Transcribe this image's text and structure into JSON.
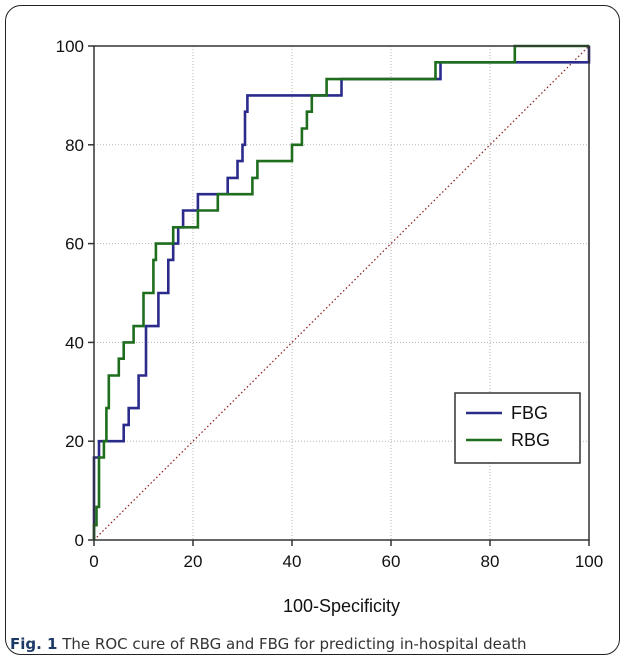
{
  "chart_data": {
    "type": "line",
    "xlabel": "100-Specificity",
    "ylabel": "",
    "xlim": [
      0,
      100
    ],
    "ylim": [
      0,
      100
    ],
    "xticks": [
      0,
      20,
      40,
      60,
      80,
      100
    ],
    "yticks": [
      0,
      20,
      40,
      60,
      80,
      100
    ],
    "grid": true,
    "legend_position": "lower-right",
    "series": [
      {
        "name": "FBG",
        "color": "#2b2b8c",
        "style": "step",
        "points": [
          [
            0,
            0
          ],
          [
            0,
            16.7
          ],
          [
            1,
            16.7
          ],
          [
            1,
            20
          ],
          [
            6,
            20
          ],
          [
            6,
            23.3
          ],
          [
            7,
            23.3
          ],
          [
            7,
            26.7
          ],
          [
            9,
            26.7
          ],
          [
            9,
            33.3
          ],
          [
            10.5,
            33.3
          ],
          [
            10.5,
            43.3
          ],
          [
            13,
            43.3
          ],
          [
            13,
            50
          ],
          [
            15,
            50
          ],
          [
            15,
            56.7
          ],
          [
            16,
            56.7
          ],
          [
            16,
            60
          ],
          [
            17,
            60
          ],
          [
            17,
            63.3
          ],
          [
            18,
            63.3
          ],
          [
            18,
            66.7
          ],
          [
            21,
            66.7
          ],
          [
            21,
            70
          ],
          [
            27,
            70
          ],
          [
            27,
            73.3
          ],
          [
            29,
            73.3
          ],
          [
            29,
            76.7
          ],
          [
            30,
            76.7
          ],
          [
            30,
            80
          ],
          [
            30.5,
            80
          ],
          [
            30.5,
            86.7
          ],
          [
            31,
            86.7
          ],
          [
            31,
            90
          ],
          [
            50,
            90
          ],
          [
            50,
            93.3
          ],
          [
            70,
            93.3
          ],
          [
            70,
            96.7
          ],
          [
            100,
            96.7
          ],
          [
            100,
            100
          ]
        ]
      },
      {
        "name": "RBG",
        "color": "#1e6e1e",
        "style": "step",
        "points": [
          [
            0,
            0
          ],
          [
            0,
            3
          ],
          [
            0.5,
            3
          ],
          [
            0.5,
            6.7
          ],
          [
            1,
            6.7
          ],
          [
            1,
            16.7
          ],
          [
            2,
            16.7
          ],
          [
            2,
            20
          ],
          [
            2.5,
            20
          ],
          [
            2.5,
            26.7
          ],
          [
            3,
            26.7
          ],
          [
            3,
            33.3
          ],
          [
            5,
            33.3
          ],
          [
            5,
            36.7
          ],
          [
            6,
            36.7
          ],
          [
            6,
            40
          ],
          [
            8,
            40
          ],
          [
            8,
            43.3
          ],
          [
            10,
            43.3
          ],
          [
            10,
            50
          ],
          [
            12,
            50
          ],
          [
            12,
            56.7
          ],
          [
            12.5,
            56.7
          ],
          [
            12.5,
            60
          ],
          [
            16,
            60
          ],
          [
            16,
            63.3
          ],
          [
            21,
            63.3
          ],
          [
            21,
            66.7
          ],
          [
            25,
            66.7
          ],
          [
            25,
            70
          ],
          [
            32,
            70
          ],
          [
            32,
            73.3
          ],
          [
            33,
            73.3
          ],
          [
            33,
            76.7
          ],
          [
            40,
            76.7
          ],
          [
            40,
            80
          ],
          [
            42,
            80
          ],
          [
            42,
            83.3
          ],
          [
            43,
            83.3
          ],
          [
            43,
            86.7
          ],
          [
            44,
            86.7
          ],
          [
            44,
            90
          ],
          [
            47,
            90
          ],
          [
            47,
            93.3
          ],
          [
            69,
            93.3
          ],
          [
            69,
            96.7
          ],
          [
            85,
            96.7
          ],
          [
            85,
            100
          ],
          [
            100,
            100
          ]
        ]
      },
      {
        "name": "reference",
        "color": "#8b1a1a",
        "style": "dotted",
        "points": [
          [
            0,
            0
          ],
          [
            100,
            100
          ]
        ]
      }
    ]
  },
  "caption": {
    "label": "Fig. 1",
    "text": " The ROC cure of RBG and FBG for predicting in-hospital death"
  }
}
